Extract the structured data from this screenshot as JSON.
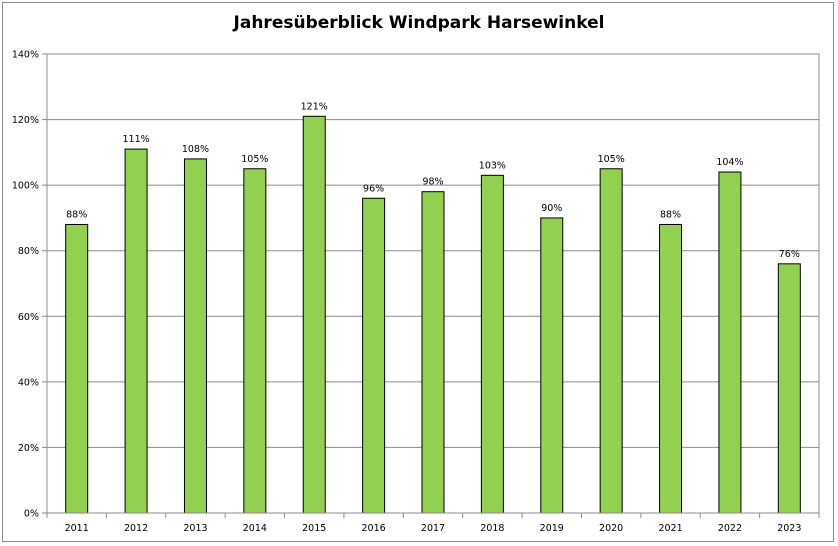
{
  "chart_data": {
    "type": "bar",
    "title": "Jahresüberblick Windpark Harsewinkel",
    "xlabel": "",
    "ylabel": "",
    "categories": [
      "2011",
      "2012",
      "2013",
      "2014",
      "2015",
      "2016",
      "2017",
      "2018",
      "2019",
      "2020",
      "2021",
      "2022",
      "2023"
    ],
    "values": [
      88,
      111,
      108,
      105,
      121,
      96,
      98,
      103,
      90,
      105,
      88,
      104,
      76
    ],
    "value_labels": [
      "88%",
      "111%",
      "108%",
      "105%",
      "121%",
      "96%",
      "98%",
      "103%",
      "90%",
      "105%",
      "88%",
      "104%",
      "76%"
    ],
    "ylim": [
      0,
      140
    ],
    "yticks": [
      0,
      20,
      40,
      60,
      80,
      100,
      120,
      140
    ],
    "ytick_labels": [
      "0%",
      "20%",
      "40%",
      "60%",
      "80%",
      "100%",
      "120%",
      "140%"
    ],
    "grid": true,
    "legend": "none",
    "bar_color": "#92d050",
    "bar_edge_color": "#000000",
    "gridline_color": "#8c8c8c"
  }
}
